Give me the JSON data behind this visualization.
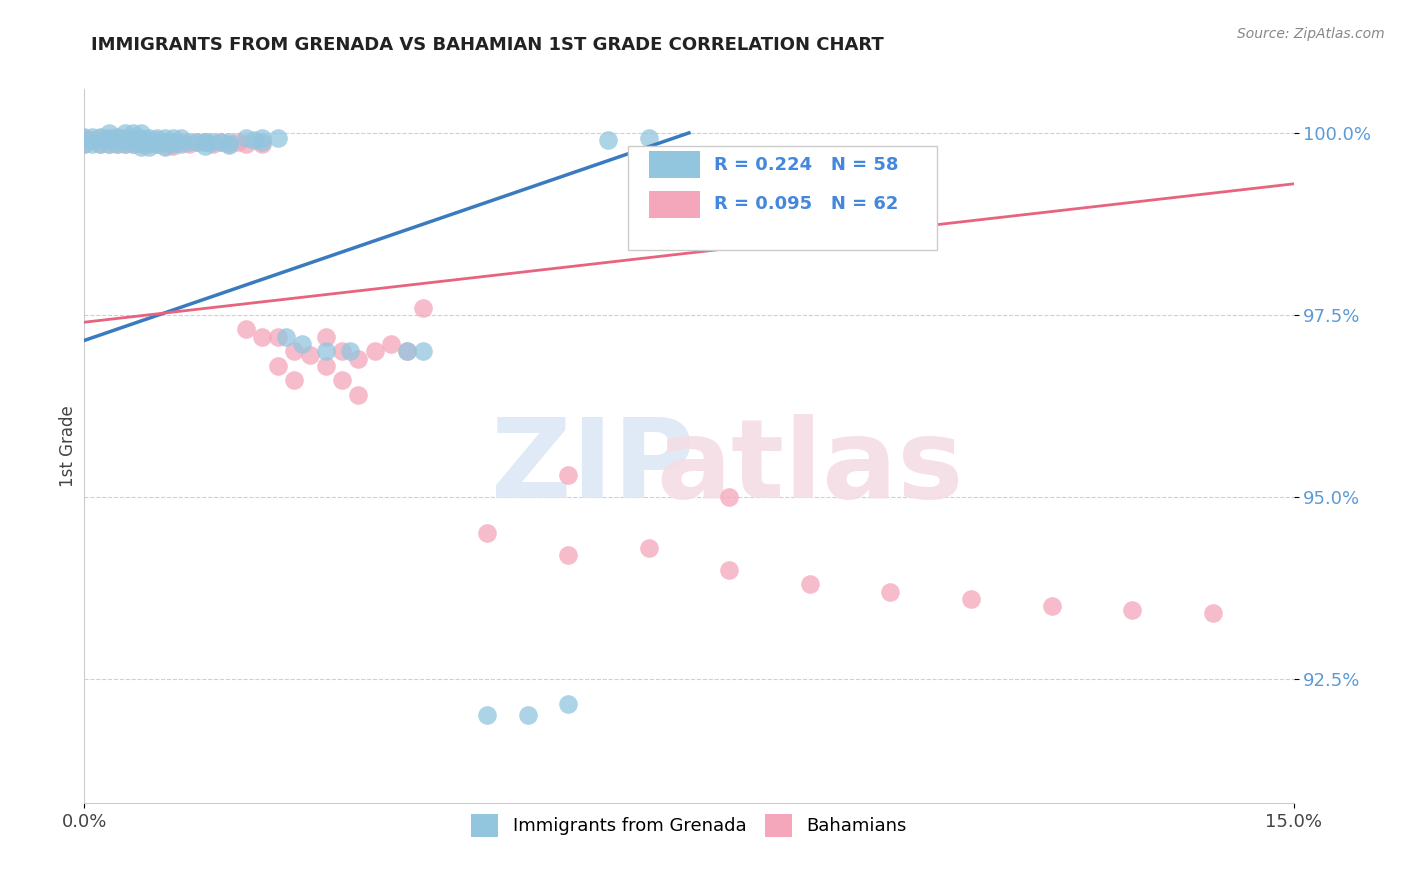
{
  "title": "IMMIGRANTS FROM GRENADA VS BAHAMIAN 1ST GRADE CORRELATION CHART",
  "source_text": "Source: ZipAtlas.com",
  "ylabel": "1st Grade",
  "xlim": [
    0.0,
    0.15
  ],
  "ylim": [
    0.908,
    1.006
  ],
  "xticks": [
    0.0,
    0.15
  ],
  "xticklabels": [
    "0.0%",
    "15.0%"
  ],
  "yticks": [
    0.925,
    0.95,
    0.975,
    1.0
  ],
  "yticklabels": [
    "92.5%",
    "95.0%",
    "97.5%",
    "100.0%"
  ],
  "blue_color": "#92c5de",
  "pink_color": "#f4a6ba",
  "blue_line_color": "#3a7bbf",
  "pink_line_color": "#e8637e",
  "legend_R_blue": "R = 0.224",
  "legend_N_blue": "N = 58",
  "legend_R_pink": "R = 0.095",
  "legend_N_pink": "N = 62",
  "legend_label_blue": "Immigrants from Grenada",
  "legend_label_pink": "Bahamians",
  "blue_line_x": [
    0.0,
    0.075
  ],
  "blue_line_y": [
    0.9715,
    1.0
  ],
  "pink_line_x": [
    0.0,
    0.15
  ],
  "pink_line_y": [
    0.974,
    0.993
  ],
  "blue_scatter_x": [
    0.0,
    0.0,
    0.001,
    0.001,
    0.002,
    0.002,
    0.003,
    0.003,
    0.003,
    0.004,
    0.004,
    0.005,
    0.005,
    0.005,
    0.006,
    0.006,
    0.006,
    0.007,
    0.007,
    0.007,
    0.007,
    0.008,
    0.008,
    0.008,
    0.009,
    0.009,
    0.01,
    0.01,
    0.01,
    0.011,
    0.011,
    0.012,
    0.012,
    0.013,
    0.014,
    0.015,
    0.015,
    0.016,
    0.017,
    0.018,
    0.02,
    0.021,
    0.022,
    0.024,
    0.025,
    0.027,
    0.03,
    0.033,
    0.04,
    0.042,
    0.05,
    0.055,
    0.06,
    0.065,
    0.07,
    0.015,
    0.018,
    0.022
  ],
  "blue_scatter_y": [
    0.9995,
    0.9985,
    0.9995,
    0.9985,
    0.9995,
    0.9985,
    1.0,
    0.9993,
    0.9985,
    0.9995,
    0.9985,
    1.0,
    0.9993,
    0.9985,
    1.0,
    0.9993,
    0.9985,
    1.0,
    0.9993,
    0.9987,
    0.998,
    0.9993,
    0.9987,
    0.998,
    0.9993,
    0.9985,
    0.9993,
    0.9987,
    0.998,
    0.9993,
    0.9985,
    0.9993,
    0.9985,
    0.9987,
    0.9988,
    0.9988,
    0.9982,
    0.9988,
    0.9988,
    0.9987,
    0.9993,
    0.999,
    0.9993,
    0.9993,
    0.972,
    0.971,
    0.97,
    0.97,
    0.97,
    0.97,
    0.92,
    0.92,
    0.9215,
    0.999,
    0.9993,
    0.9987,
    0.9984,
    0.9988
  ],
  "pink_scatter_x": [
    0.0,
    0.0,
    0.001,
    0.002,
    0.002,
    0.003,
    0.003,
    0.004,
    0.004,
    0.005,
    0.005,
    0.006,
    0.006,
    0.007,
    0.007,
    0.008,
    0.008,
    0.009,
    0.009,
    0.01,
    0.01,
    0.011,
    0.011,
    0.012,
    0.013,
    0.014,
    0.015,
    0.016,
    0.017,
    0.018,
    0.019,
    0.02,
    0.022,
    0.024,
    0.026,
    0.028,
    0.03,
    0.032,
    0.034,
    0.036,
    0.038,
    0.04,
    0.042,
    0.05,
    0.06,
    0.07,
    0.08,
    0.09,
    0.1,
    0.11,
    0.12,
    0.13,
    0.14,
    0.024,
    0.026,
    0.03,
    0.032,
    0.034,
    0.02,
    0.022,
    0.06,
    0.08
  ],
  "pink_scatter_y": [
    0.9993,
    0.9985,
    0.999,
    0.9993,
    0.9985,
    0.9993,
    0.9985,
    0.9993,
    0.9985,
    0.999,
    0.9985,
    0.999,
    0.9985,
    0.999,
    0.9985,
    0.999,
    0.9985,
    0.999,
    0.9985,
    0.9988,
    0.9982,
    0.9988,
    0.9982,
    0.9988,
    0.9985,
    0.9988,
    0.9988,
    0.9985,
    0.9988,
    0.9985,
    0.9988,
    0.9985,
    0.9985,
    0.972,
    0.97,
    0.9695,
    0.972,
    0.97,
    0.969,
    0.97,
    0.971,
    0.97,
    0.976,
    0.945,
    0.942,
    0.943,
    0.94,
    0.938,
    0.937,
    0.936,
    0.935,
    0.9345,
    0.934,
    0.968,
    0.966,
    0.968,
    0.966,
    0.964,
    0.973,
    0.972,
    0.953,
    0.95
  ]
}
